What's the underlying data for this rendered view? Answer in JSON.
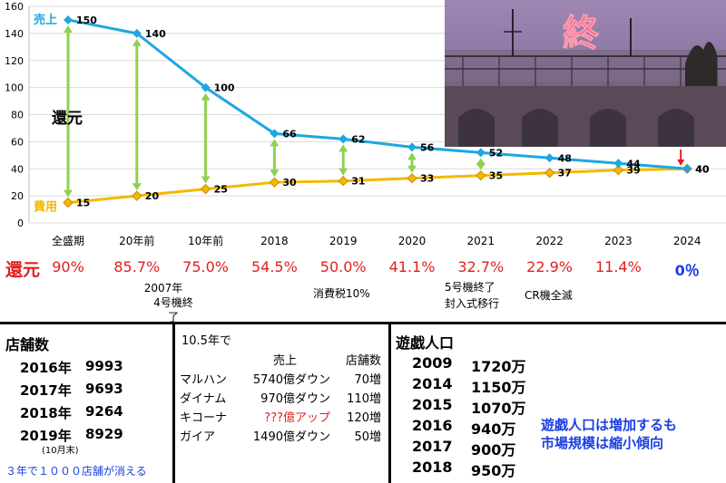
{
  "chart_data": {
    "type": "line",
    "categories": [
      "全盛期",
      "20年前",
      "10年前",
      "2018",
      "2019",
      "2020",
      "2021",
      "2022",
      "2023",
      "2024"
    ],
    "ylim": [
      0,
      160
    ],
    "yticks": [
      "0",
      "20",
      "40",
      "60",
      "80",
      "100",
      "120",
      "140",
      "160"
    ],
    "series": [
      {
        "name": "売上",
        "color": "#1ea7e0",
        "values": [
          150,
          140,
          100,
          66,
          62,
          56,
          52,
          48,
          44,
          40
        ],
        "labels": [
          "150",
          "140",
          "100",
          "66",
          "62",
          "56",
          "52",
          "48",
          "44",
          "40"
        ]
      },
      {
        "name": "費用",
        "color": "#f5b800",
        "values": [
          15,
          20,
          25,
          30,
          31,
          33,
          35,
          37,
          39,
          40
        ],
        "labels": [
          "15",
          "20",
          "25",
          "30",
          "31",
          "33",
          "35",
          "37",
          "39",
          "40"
        ]
      }
    ],
    "annotation": "還元",
    "grid": true
  },
  "percent_row": {
    "head": "還元",
    "values": [
      "90%",
      "85.7%",
      "75.0%",
      "54.5%",
      "50.0%",
      "41.1%",
      "32.7%",
      "22.9%",
      "11.4%",
      "0％"
    ],
    "last_color": "#1a3fe0"
  },
  "notes": {
    "n2007_line1": "2007年",
    "n2007_line2": "4号機終了",
    "tax": "消費税10%",
    "n5_line1": "5号機終了",
    "n5_line2": "封入式移行",
    "cr": "CR機全滅"
  },
  "photo": {
    "sign": "終"
  },
  "stores": {
    "title": "店舗数",
    "rows": [
      {
        "year": "2016年",
        "count": "9993"
      },
      {
        "year": "2017年",
        "count": "9693"
      },
      {
        "year": "2018年",
        "count": "9264"
      },
      {
        "year": "2019年",
        "count": "8929"
      }
    ],
    "sub": "(10月末)",
    "footer": "３年で１０００店舗が消える"
  },
  "companies": {
    "title": "10.5年で",
    "headers": [
      "売上",
      "店舗数"
    ],
    "rows": [
      {
        "name": "マルハン",
        "sales": "5740億ダウン",
        "stores": "70増"
      },
      {
        "name": "ダイナム",
        "sales": "970億ダウン",
        "stores": "110増"
      },
      {
        "name": "キコーナ",
        "sales": "???億アップ",
        "stores": "120増"
      },
      {
        "name": "ガイア",
        "sales": "1490億ダウン",
        "stores": "50増"
      }
    ]
  },
  "players": {
    "title": "遊戯人口",
    "rows": [
      {
        "year": "2009",
        "count": "1720万"
      },
      {
        "year": "2014",
        "count": "1150万"
      },
      {
        "year": "2015",
        "count": "1070万"
      },
      {
        "year": "2016",
        "count": "940万"
      },
      {
        "year": "2017",
        "count": "900万"
      },
      {
        "year": "2018",
        "count": "950万"
      }
    ],
    "comment_line1": "遊戯人口は増加するも",
    "comment_line2": "市場規模は縮小傾向"
  }
}
